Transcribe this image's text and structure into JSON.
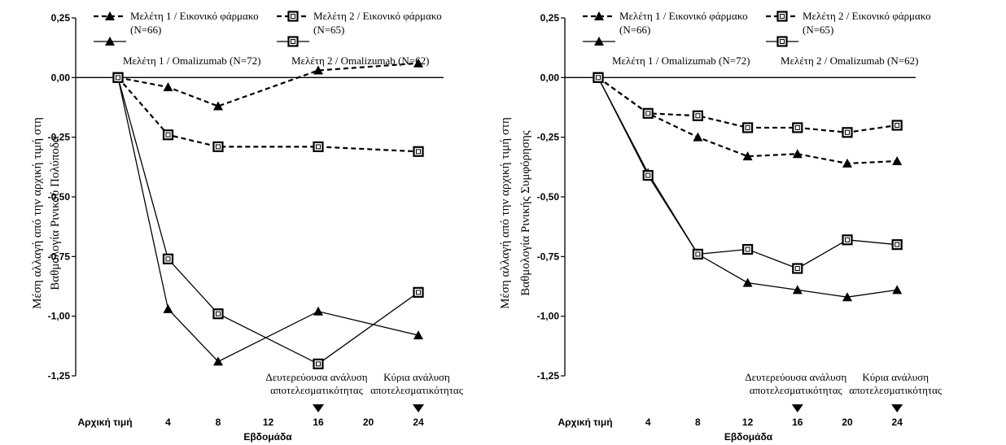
{
  "chart_data": [
    {
      "type": "line",
      "title": "",
      "ylabel_lines": [
        "Μέση αλλαγή από την αρχική τιμή στη",
        "Βαθμολογία Ρινικού Πολύποδα"
      ],
      "xlabel": "Εβδομάδα",
      "ylim": [
        -1.25,
        0.25
      ],
      "y_ticks": [
        "0,25",
        "0,00",
        "-0,25",
        "-0,50",
        "-0,75",
        "-1,00",
        "-1,25"
      ],
      "x_ticks": [
        "Αρχική τιμή",
        "4",
        "8",
        "12",
        "16",
        "20",
        "24"
      ],
      "x": [
        0,
        4,
        8,
        16,
        24
      ],
      "series": [
        {
          "name": "Μελέτη 1 / Εικονικό φάρμακο",
          "sub": "(N=66)",
          "marker": "triangle",
          "dashed": true,
          "values": [
            0,
            -0.04,
            -0.12,
            0.03,
            0.06
          ]
        },
        {
          "name": "Μελέτη 2 / Εικονικό φάρμακο",
          "sub": "(N=65)",
          "marker": "square",
          "dashed": true,
          "values": [
            0,
            -0.24,
            -0.29,
            -0.29,
            -0.31
          ]
        },
        {
          "name": "Μελέτη 1 / Omalizumab (N=72)",
          "sub": "",
          "marker": "triangle",
          "dashed": false,
          "values": [
            0,
            -0.97,
            -1.19,
            -0.98,
            -1.08
          ]
        },
        {
          "name": "Μελέτη 2 / Omalizumab (N=62)",
          "sub": "",
          "marker": "square",
          "dashed": false,
          "values": [
            0,
            -0.76,
            -0.99,
            -1.2,
            -0.9
          ]
        }
      ],
      "annotations": [
        {
          "week": 16,
          "lines": [
            "Δευτερεύουσα ανάλυση",
            "αποτελεσματικότητας"
          ]
        },
        {
          "week": 24,
          "lines": [
            "Κύρια ανάλυση",
            "αποτελεσματικότητας"
          ]
        }
      ]
    },
    {
      "type": "line",
      "title": "",
      "ylabel_lines": [
        "Μέση αλλαγή από την αρχική τιμή στη",
        "Βαθμολογία Ρινικής Συμφόρησης"
      ],
      "xlabel": "Εβδομάδα",
      "ylim": [
        -1.25,
        0.25
      ],
      "y_ticks": [
        "0,25",
        "0,00",
        "-0,25",
        "-0,50",
        "-0,75",
        "-1,00",
        "-1,25"
      ],
      "x_ticks": [
        "Αρχική τιμή",
        "4",
        "8",
        "12",
        "16",
        "20",
        "24"
      ],
      "x": [
        0,
        4,
        8,
        12,
        16,
        20,
        24
      ],
      "series": [
        {
          "name": "Μελέτη 1 / Εικονικό φάρμακο",
          "sub": "(N=66)",
          "marker": "triangle",
          "dashed": true,
          "values": [
            0,
            -0.15,
            -0.25,
            -0.33,
            -0.32,
            -0.36,
            -0.35
          ]
        },
        {
          "name": "Μελέτη 2 / Εικονικό φάρμακο",
          "sub": "(N=65)",
          "marker": "square",
          "dashed": true,
          "values": [
            0,
            -0.15,
            -0.16,
            -0.21,
            -0.21,
            -0.23,
            -0.2
          ]
        },
        {
          "name": "Μελέτη 1 / Omalizumab (N=72)",
          "sub": "",
          "marker": "triangle",
          "dashed": false,
          "values": [
            0,
            -0.4,
            -0.74,
            -0.86,
            -0.89,
            -0.92,
            -0.89
          ]
        },
        {
          "name": "Μελέτη 2 / Omalizumab (N=62)",
          "sub": "",
          "marker": "square",
          "dashed": false,
          "values": [
            0,
            -0.41,
            -0.74,
            -0.72,
            -0.8,
            -0.68,
            -0.7
          ]
        }
      ],
      "annotations": [
        {
          "week": 16,
          "lines": [
            "Δευτερεύουσα ανάλυση",
            "αποτελεσματικότητας"
          ]
        },
        {
          "week": 24,
          "lines": [
            "Κύρια ανάλυση",
            "αποτελεσματικότητας"
          ]
        }
      ]
    }
  ]
}
